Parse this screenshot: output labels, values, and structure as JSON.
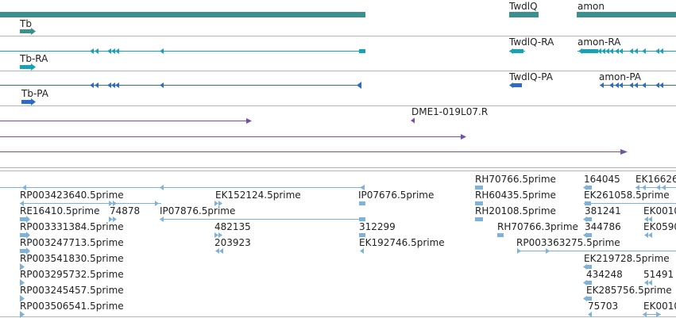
{
  "colors": {
    "gene": "#3a8f8f",
    "rna": "#17a2b8",
    "protein": "#2b6cc4",
    "est": "#7152a8",
    "cdna": "#7fb2d8",
    "divider": "#b4b4b4",
    "text": "#222222"
  },
  "icons": {
    "strand_marker": "arrowhead-icon"
  },
  "tracks": {
    "gene": {
      "labels": [
        "Tb",
        "TwdlQ",
        "amon"
      ]
    },
    "transcript": {
      "labels": [
        "Tb-RA",
        "TwdlQ-RA",
        "amon-RA"
      ]
    },
    "translation": {
      "labels": [
        "Tb-PA",
        "TwdlQ-PA",
        "amon-PA"
      ]
    },
    "est": {
      "labels": [
        "DME1-019L07.R"
      ]
    },
    "cdna": {
      "labels": [
        "RH70766.5prime",
        "164045",
        "EK16626",
        "RP003423640.5prime",
        "EK152124.5prime",
        "IP07676.5prime",
        "RH60435.5prime",
        "EK261058.5prime",
        "RE16410.5prime",
        "74878",
        "IP07876.5prime",
        "RH20108.5prime",
        "381241",
        "EK0010",
        "RP003331384.5prime",
        "482135",
        "312299",
        "RH70766.3prime",
        "344786",
        "EK0590",
        "RP003247713.5prime",
        "203923",
        "EK192746.5prime",
        "RP003363275.5prime",
        "RP003541830.5prime",
        "EK219728.5prime",
        "RP003295732.5prime",
        "434248",
        "51491",
        "RP003245457.5prime",
        "EK285756.5prime",
        "RP003506541.5prime",
        "75703",
        "EK0010"
      ]
    }
  }
}
